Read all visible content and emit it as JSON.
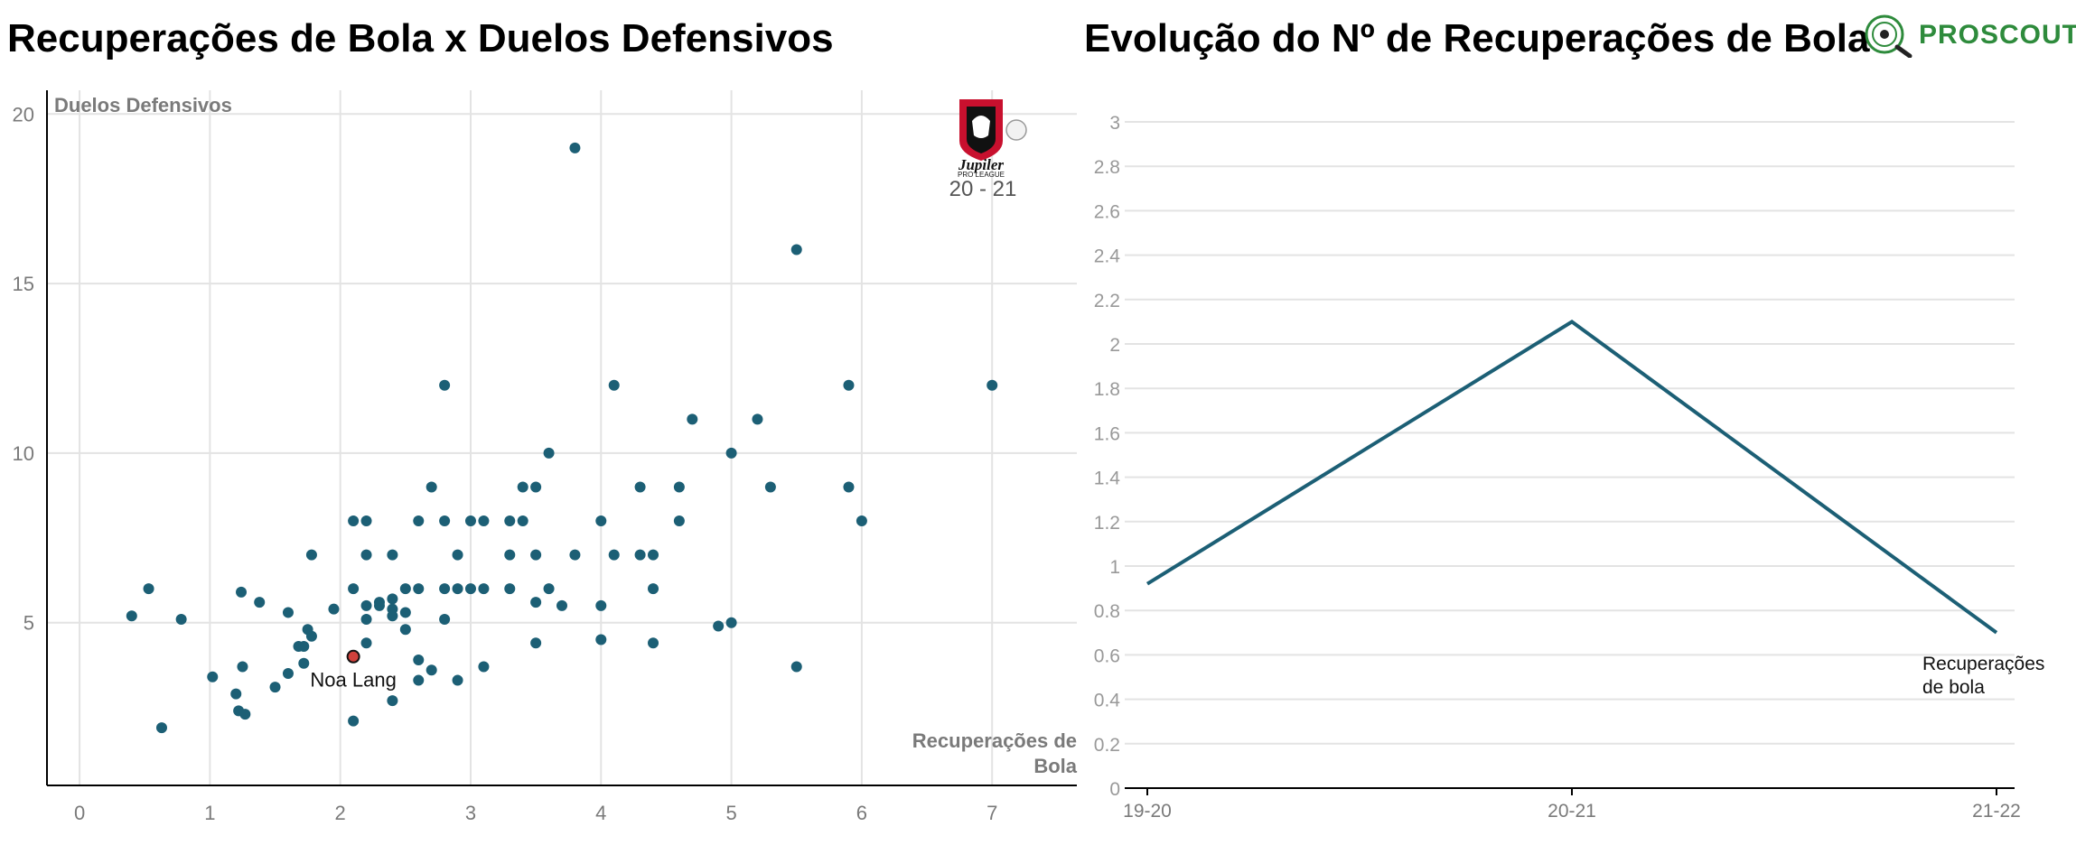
{
  "colors": {
    "series": "#1c5f75",
    "highlight": "#d0413c",
    "grid": "#e3e3e3",
    "axis": "#000000",
    "tick": "#7a7a7a"
  },
  "badges": {
    "league_logo": "jupiler-pro-league-logo",
    "league_season": "20 - 21",
    "brand_logo": "proscout-logo",
    "brand_name": "PROSCOUT"
  },
  "chart_data": [
    {
      "type": "scatter",
      "title": "Recuperações de Bola x Duelos Defensivos",
      "xlabel": "Recuperações de Bola",
      "ylabel": "Duelos Defensivos",
      "xlim": [
        -0.25,
        7.65
      ],
      "ylim": [
        0.2,
        20.7
      ],
      "xticks": [
        0,
        1,
        2,
        3,
        4,
        5,
        6,
        7
      ],
      "yticks": [
        5,
        10,
        15,
        20
      ],
      "grid": true,
      "highlight": {
        "name": "Noa Lang",
        "x": 2.1,
        "y": 4.0
      },
      "points": [
        [
          0.4,
          5.2
        ],
        [
          0.53,
          6.0
        ],
        [
          0.63,
          1.9
        ],
        [
          0.78,
          5.1
        ],
        [
          1.02,
          3.4
        ],
        [
          1.2,
          2.9
        ],
        [
          1.22,
          2.4
        ],
        [
          1.24,
          5.9
        ],
        [
          1.25,
          3.7
        ],
        [
          1.27,
          2.3
        ],
        [
          1.38,
          5.6
        ],
        [
          1.5,
          3.1
        ],
        [
          1.6,
          5.3
        ],
        [
          1.6,
          3.5
        ],
        [
          1.68,
          4.3
        ],
        [
          1.72,
          3.8
        ],
        [
          1.72,
          4.3
        ],
        [
          1.75,
          4.8
        ],
        [
          1.78,
          4.6
        ],
        [
          1.78,
          7.0
        ],
        [
          1.95,
          5.4
        ],
        [
          2.1,
          2.1
        ],
        [
          2.1,
          6.0
        ],
        [
          2.1,
          8.0
        ],
        [
          2.2,
          8.0
        ],
        [
          2.2,
          7.0
        ],
        [
          2.2,
          5.1
        ],
        [
          2.2,
          5.5
        ],
        [
          2.2,
          4.4
        ],
        [
          2.3,
          5.6
        ],
        [
          2.3,
          5.5
        ],
        [
          2.4,
          5.7
        ],
        [
          2.4,
          5.4
        ],
        [
          2.4,
          5.2
        ],
        [
          2.4,
          7.0
        ],
        [
          2.4,
          2.7
        ],
        [
          2.5,
          6.0
        ],
        [
          2.5,
          5.3
        ],
        [
          2.5,
          4.8
        ],
        [
          2.6,
          6.0
        ],
        [
          2.6,
          8.0
        ],
        [
          2.6,
          3.9
        ],
        [
          2.6,
          3.3
        ],
        [
          2.7,
          3.6
        ],
        [
          2.7,
          9.0
        ],
        [
          2.8,
          12.0
        ],
        [
          2.8,
          8.0
        ],
        [
          2.8,
          6.0
        ],
        [
          2.8,
          5.1
        ],
        [
          2.9,
          7.0
        ],
        [
          2.9,
          6.0
        ],
        [
          2.9,
          3.3
        ],
        [
          3.0,
          8.0
        ],
        [
          3.0,
          6.0
        ],
        [
          3.1,
          8.0
        ],
        [
          3.1,
          6.0
        ],
        [
          3.1,
          3.7
        ],
        [
          3.3,
          8.0
        ],
        [
          3.3,
          7.0
        ],
        [
          3.3,
          6.0
        ],
        [
          3.4,
          8.0
        ],
        [
          3.4,
          9.0
        ],
        [
          3.5,
          9.0
        ],
        [
          3.5,
          7.0
        ],
        [
          3.5,
          5.6
        ],
        [
          3.5,
          4.4
        ],
        [
          3.6,
          10.0
        ],
        [
          3.6,
          6.0
        ],
        [
          3.7,
          5.5
        ],
        [
          3.8,
          19.0
        ],
        [
          3.8,
          7.0
        ],
        [
          4.0,
          8.0
        ],
        [
          4.0,
          5.5
        ],
        [
          4.0,
          4.5
        ],
        [
          4.1,
          12.0
        ],
        [
          4.1,
          7.0
        ],
        [
          4.3,
          9.0
        ],
        [
          4.3,
          7.0
        ],
        [
          4.4,
          7.0
        ],
        [
          4.4,
          6.0
        ],
        [
          4.4,
          4.4
        ],
        [
          4.6,
          9.0
        ],
        [
          4.6,
          8.0
        ],
        [
          4.7,
          11.0
        ],
        [
          4.9,
          4.9
        ],
        [
          5.0,
          10.0
        ],
        [
          5.0,
          5.0
        ],
        [
          5.2,
          11.0
        ],
        [
          5.3,
          9.0
        ],
        [
          5.5,
          16.0
        ],
        [
          5.5,
          3.7
        ],
        [
          5.9,
          12.0
        ],
        [
          5.9,
          9.0
        ],
        [
          6.0,
          8.0
        ],
        [
          7.0,
          12.0
        ]
      ]
    },
    {
      "type": "line",
      "title": "Evolução do Nº de Recuperações de Bola",
      "categories": [
        "19-20",
        "20-21",
        "21-22"
      ],
      "ylim": [
        0,
        3
      ],
      "yticks": [
        "0",
        "0.2",
        "0.4",
        "0.6",
        "0.8",
        "1",
        "1.2",
        "1.4",
        "1.6",
        "1.8",
        "2",
        "2.2",
        "2.4",
        "2.6",
        "2.8",
        "3"
      ],
      "grid": true,
      "series": [
        {
          "name": "Recuperações de bola",
          "values": [
            0.92,
            2.1,
            0.7
          ]
        }
      ]
    }
  ]
}
